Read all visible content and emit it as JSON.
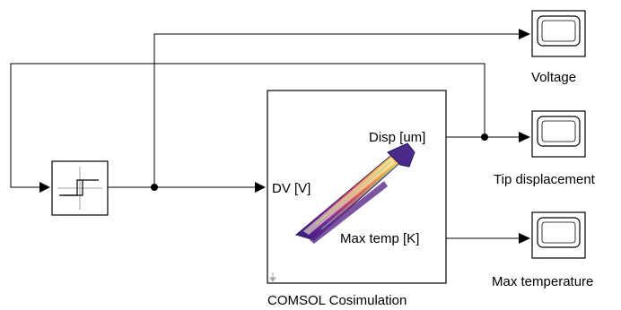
{
  "model": {
    "blocks": {
      "relay": {
        "name": "Relay",
        "icon": "relay-hysteresis-icon"
      },
      "cosim": {
        "caption": "COMSOL Cosimulation",
        "icon": "beam-deformation-icon",
        "inputs": {
          "dv": "DV [V]"
        },
        "outputs": {
          "disp": "Disp [um]",
          "max_temp": "Max temp [K]"
        }
      },
      "scopes": {
        "voltage": {
          "caption": "Voltage",
          "icon": "scope-icon"
        },
        "tip": {
          "caption": "Tip displacement",
          "icon": "scope-icon"
        },
        "temp": {
          "caption": "Max temperature",
          "icon": "scope-icon"
        }
      }
    },
    "colors": {
      "line": "#000000",
      "block_border": "#000000",
      "block_fill": "#ffffff"
    }
  }
}
